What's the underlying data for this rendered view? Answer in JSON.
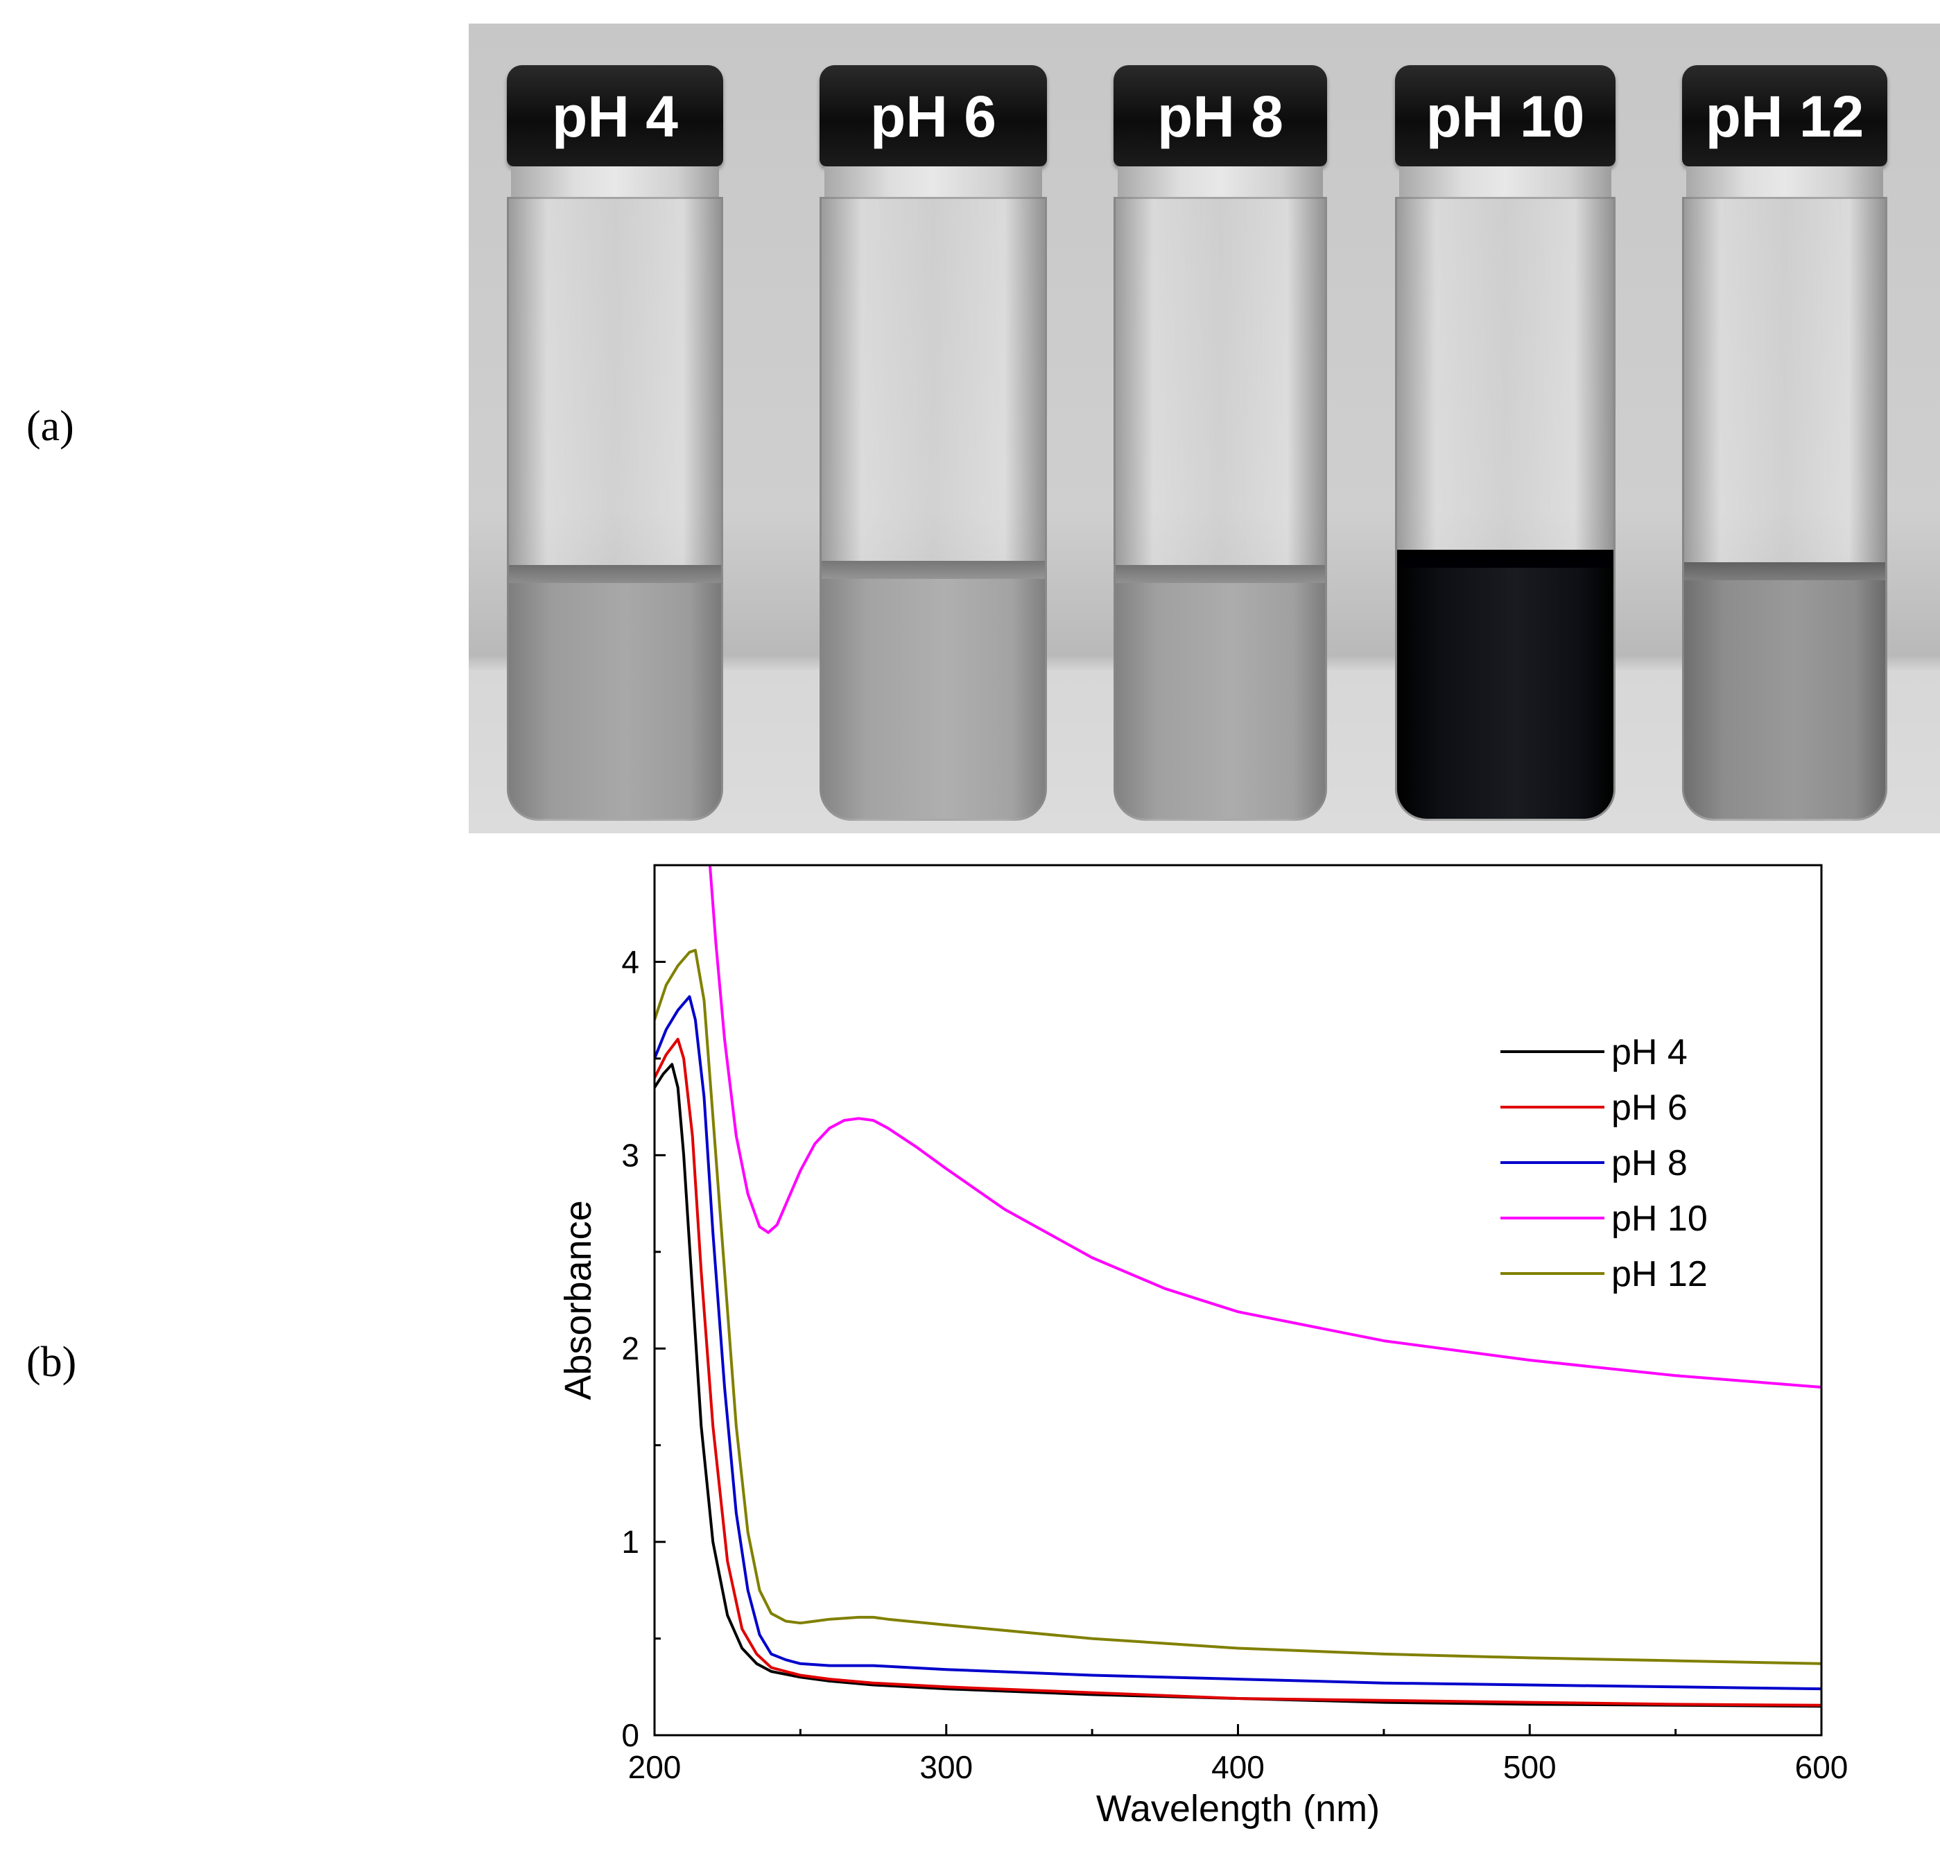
{
  "panels": {
    "a": "(a)",
    "b": "(b)"
  },
  "photo": {
    "vials": [
      {
        "label": "pH 4",
        "liquid_color": "#9c9c9c"
      },
      {
        "label": "pH 6",
        "liquid_color": "#a3a3a3"
      },
      {
        "label": "pH 8",
        "liquid_color": "#a0a0a0"
      },
      {
        "label": "pH 10",
        "liquid_color": "#0d0f14"
      },
      {
        "label": "pH 12",
        "liquid_color": "#8d8d8d"
      }
    ]
  },
  "chart_data": {
    "type": "line",
    "title": "",
    "xlabel": "Wavelength (nm)",
    "ylabel": "Absorbance",
    "xlim": [
      200,
      600
    ],
    "ylim": [
      0,
      4.5
    ],
    "xticks": [
      200,
      300,
      400,
      500,
      600
    ],
    "yticks": [
      0,
      1,
      2,
      3,
      4
    ],
    "legend_position": "right",
    "series": [
      {
        "name": "pH 4",
        "color": "#000000",
        "x": [
          200,
          203,
          206,
          208,
          210,
          213,
          216,
          220,
          225,
          230,
          235,
          240,
          250,
          260,
          275,
          300,
          350,
          400,
          450,
          500,
          550,
          600
        ],
        "y": [
          3.35,
          3.42,
          3.47,
          3.35,
          3.0,
          2.3,
          1.6,
          1.0,
          0.62,
          0.45,
          0.37,
          0.33,
          0.3,
          0.28,
          0.26,
          0.24,
          0.21,
          0.19,
          0.17,
          0.16,
          0.155,
          0.15
        ]
      },
      {
        "name": "pH 6",
        "color": "#e00000",
        "x": [
          200,
          204,
          208,
          210,
          213,
          216,
          220,
          225,
          230,
          235,
          240,
          250,
          260,
          275,
          300,
          350,
          400,
          450,
          500,
          550,
          600
        ],
        "y": [
          3.4,
          3.52,
          3.6,
          3.5,
          3.1,
          2.4,
          1.6,
          0.9,
          0.55,
          0.42,
          0.35,
          0.31,
          0.29,
          0.27,
          0.25,
          0.22,
          0.19,
          0.18,
          0.17,
          0.16,
          0.155
        ]
      },
      {
        "name": "pH 8",
        "color": "#0000cc",
        "x": [
          200,
          204,
          208,
          212,
          214,
          217,
          220,
          224,
          228,
          232,
          236,
          240,
          245,
          250,
          260,
          275,
          300,
          350,
          400,
          450,
          500,
          550,
          600
        ],
        "y": [
          3.5,
          3.65,
          3.75,
          3.82,
          3.7,
          3.3,
          2.6,
          1.8,
          1.15,
          0.75,
          0.52,
          0.42,
          0.39,
          0.37,
          0.36,
          0.36,
          0.34,
          0.31,
          0.29,
          0.27,
          0.26,
          0.25,
          0.24
        ]
      },
      {
        "name": "pH 10",
        "color": "#ff00ff",
        "x": [
          219,
          221,
          224,
          228,
          232,
          236,
          239,
          242,
          246,
          250,
          255,
          260,
          265,
          270,
          275,
          280,
          290,
          300,
          320,
          350,
          375,
          400,
          450,
          500,
          550,
          600
        ],
        "y": [
          4.5,
          4.1,
          3.6,
          3.1,
          2.8,
          2.63,
          2.6,
          2.64,
          2.78,
          2.92,
          3.06,
          3.14,
          3.18,
          3.19,
          3.18,
          3.14,
          3.04,
          2.93,
          2.72,
          2.47,
          2.31,
          2.19,
          2.04,
          1.94,
          1.86,
          1.8
        ]
      },
      {
        "name": "pH 12",
        "color": "#808000",
        "x": [
          200,
          204,
          208,
          212,
          214,
          217,
          220,
          224,
          228,
          232,
          236,
          240,
          245,
          250,
          255,
          260,
          270,
          275,
          280,
          300,
          350,
          400,
          450,
          500,
          550,
          600
        ],
        "y": [
          3.7,
          3.88,
          3.98,
          4.05,
          4.06,
          3.8,
          3.2,
          2.4,
          1.6,
          1.05,
          0.75,
          0.63,
          0.59,
          0.58,
          0.59,
          0.6,
          0.61,
          0.61,
          0.6,
          0.57,
          0.5,
          0.45,
          0.42,
          0.4,
          0.385,
          0.37
        ]
      }
    ]
  }
}
